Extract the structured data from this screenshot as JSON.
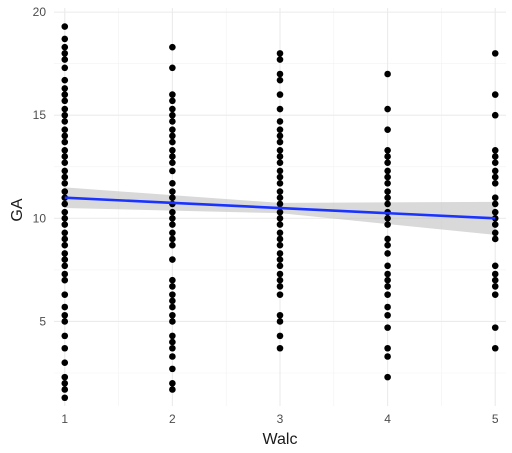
{
  "chart_data": {
    "type": "scatter",
    "xlabel": "Walc",
    "ylabel": "GA",
    "xlim": [
      0.9,
      5.1
    ],
    "ylim": [
      0.9,
      20.2
    ],
    "x_ticks": [
      1,
      2,
      3,
      4,
      5
    ],
    "y_ticks": [
      5,
      10,
      15,
      20
    ],
    "grid": true,
    "point_color": "#000000",
    "trend_color": "#1a33ff",
    "band_color": "#bfbfbf",
    "points": [
      {
        "x": 1,
        "y": [
          1.3,
          1.7,
          2.0,
          2.3,
          3.0,
          3.7,
          4.3,
          5.0,
          5.3,
          5.7,
          6.3,
          7.0,
          7.3,
          7.7,
          8.0,
          8.3,
          8.7,
          9.0,
          9.3,
          9.7,
          10.0,
          10.3,
          10.7,
          11.0,
          11.3,
          11.7,
          12.0,
          12.3,
          12.7,
          13.0,
          13.3,
          13.7,
          14.0,
          14.3,
          14.7,
          15.0,
          15.3,
          15.7,
          16.0,
          16.3,
          16.7,
          17.3,
          17.7,
          18.0,
          18.3,
          18.7,
          19.3
        ]
      },
      {
        "x": 2,
        "y": [
          1.7,
          2.0,
          2.7,
          3.3,
          3.7,
          4.0,
          4.3,
          5.0,
          5.3,
          5.7,
          6.0,
          6.3,
          6.7,
          7.0,
          8.0,
          8.7,
          9.0,
          9.3,
          9.7,
          10.0,
          10.3,
          10.7,
          11.0,
          11.3,
          11.7,
          12.3,
          12.7,
          13.0,
          13.3,
          13.7,
          14.0,
          14.3,
          14.7,
          15.0,
          15.3,
          15.7,
          16.0,
          17.3,
          18.3
        ]
      },
      {
        "x": 3,
        "y": [
          3.7,
          4.3,
          5.0,
          5.3,
          6.3,
          6.7,
          7.0,
          7.3,
          7.7,
          8.0,
          8.3,
          8.7,
          9.0,
          9.3,
          9.7,
          10.0,
          10.3,
          10.7,
          11.0,
          11.3,
          11.7,
          12.0,
          12.3,
          12.7,
          13.0,
          13.3,
          13.7,
          14.0,
          14.3,
          14.7,
          15.3,
          16.0,
          16.7,
          17.0,
          17.7,
          18.0
        ]
      },
      {
        "x": 4,
        "y": [
          2.3,
          3.3,
          3.7,
          4.7,
          5.3,
          5.7,
          6.3,
          6.7,
          7.0,
          7.3,
          7.7,
          8.3,
          8.7,
          9.0,
          9.7,
          10.0,
          10.3,
          10.7,
          11.0,
          11.3,
          11.7,
          12.0,
          12.3,
          12.7,
          13.0,
          13.3,
          14.3,
          15.3,
          17.0
        ]
      },
      {
        "x": 5,
        "y": [
          3.7,
          4.7,
          6.3,
          6.7,
          7.0,
          7.3,
          7.7,
          9.0,
          9.3,
          9.7,
          10.0,
          10.3,
          10.7,
          11.0,
          11.7,
          12.0,
          12.3,
          12.7,
          13.0,
          13.3,
          15.0,
          16.0,
          18.0
        ]
      }
    ],
    "trend": {
      "x": [
        1,
        5
      ],
      "y": [
        11.0,
        10.0
      ]
    },
    "confidence_band": {
      "x": [
        1,
        3,
        5
      ],
      "upper": [
        11.5,
        10.75,
        10.8
      ],
      "lower": [
        10.5,
        10.25,
        9.2
      ]
    }
  }
}
